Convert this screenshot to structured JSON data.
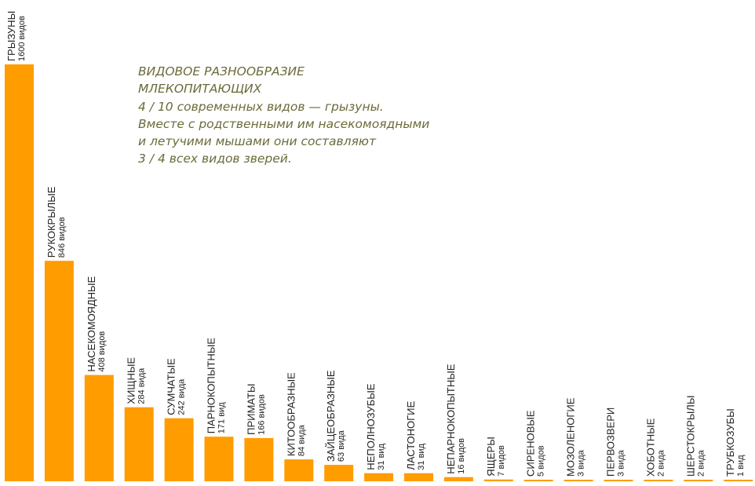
{
  "caption": {
    "title_line1": "ВИДОВОЕ РАЗНООБРАЗИЕ",
    "title_line2": "МЛЕКОПИТАЮЩИХ",
    "text_line1": "4 / 10 современных видов — грызуны.",
    "text_line2": "Вместе с родственными им насекомоядными",
    "text_line3": "и летучими мышами они составляют",
    "text_line4": "3 / 4 всех видов зверей."
  },
  "colors": {
    "bar": "#ff9c00",
    "label": "#222222",
    "caption": "#6b6b3a"
  },
  "chart_data": {
    "type": "bar",
    "categories": [
      "ГРЫЗУНЫ",
      "РУКОКРЫЛЫЕ",
      "НАСЕКОМОЯДНЫЕ",
      "ХИЩНЫЕ",
      "СУМЧАТЫЕ",
      "ПАРНОКОПЫТНЫЕ",
      "ПРИМАТЫ",
      "КИТООБРАЗНЫЕ",
      "ЗАЙЦЕОБРАЗНЫЕ",
      "НЕПОЛНОЗУБЫЕ",
      "ЛАСТОНОГИЕ",
      "НЕПАРНОКОПЫТНЫЕ",
      "ЯЩЕРЫ",
      "СИРЕНОВЫЕ",
      "МОЗОЛЕНОГИЕ",
      "ПЕРВОЗВЕРИ",
      "ХОБОТНЫЕ",
      "ШЕРСТОКРЫЛЫ",
      "ТРУБКОЗУБЫ"
    ],
    "values": [
      1600,
      846,
      408,
      284,
      242,
      171,
      166,
      84,
      63,
      31,
      31,
      16,
      7,
      5,
      3,
      3,
      2,
      2,
      1
    ],
    "data_labels": [
      "1600 видов",
      "846 видов",
      "408 видов",
      "284 вида",
      "242 вида",
      "171 вид",
      "166 видов",
      "84 вида",
      "63 вида",
      "31 вид",
      "31 вид",
      "16 видов",
      "7 видов",
      "5 видов",
      "3 вида",
      "3 вида",
      "2 вида",
      "2 вида",
      "1 вид"
    ],
    "ylim": [
      0,
      1600
    ],
    "grid": false,
    "legend": "none"
  }
}
